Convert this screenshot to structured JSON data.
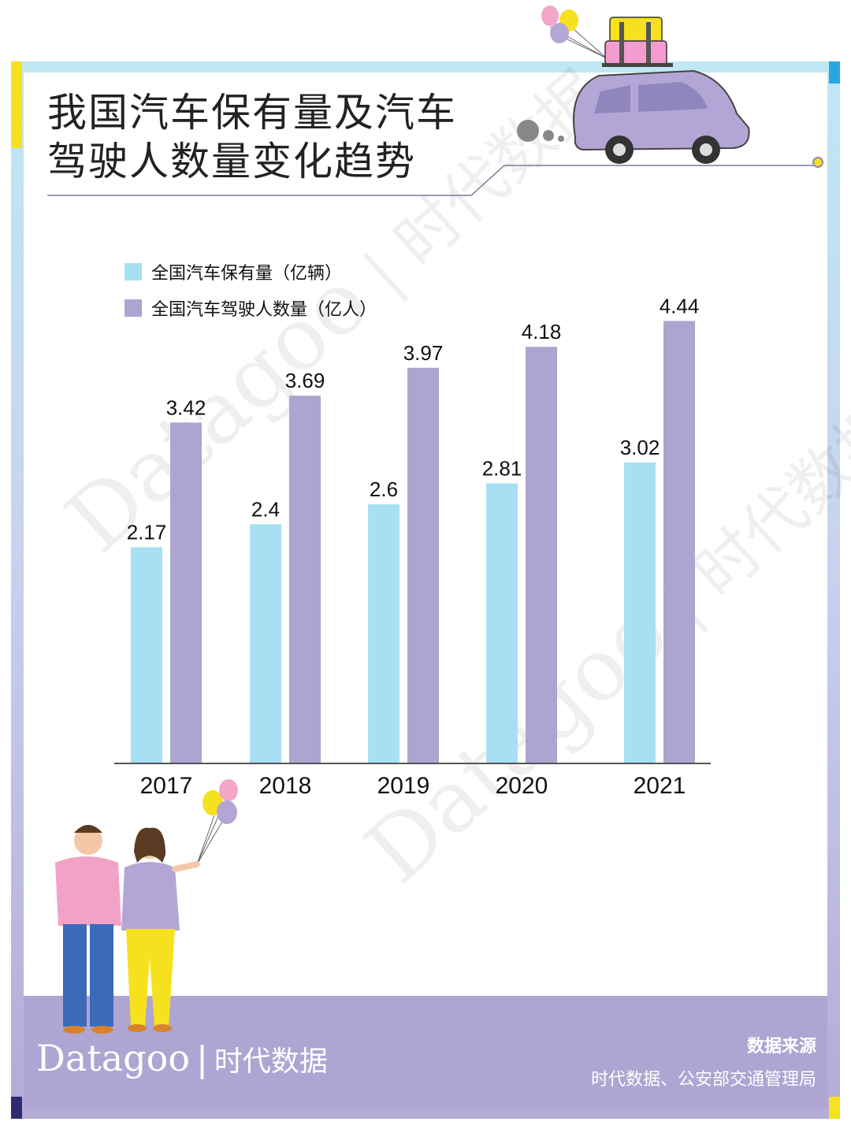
{
  "title": {
    "line1": "我国汽车保有量及汽车",
    "line2": "驾驶人数量变化趋势"
  },
  "colors": {
    "series_cars": "#a8e0f3",
    "series_drivers": "#ada4cf",
    "footer": "#aea5d2",
    "accent_yellow": "#f6e11e",
    "accent_blue": "#29a7e0",
    "accent_navy": "#2e2b6e"
  },
  "chart_data": {
    "type": "bar",
    "categories": [
      "2017",
      "2018",
      "2019",
      "2020",
      "2021"
    ],
    "series": [
      {
        "name": "全国汽车保有量（亿辆）",
        "values": [
          2.17,
          2.4,
          2.6,
          2.81,
          3.02
        ]
      },
      {
        "name": "全国汽车驾驶人数量（亿人）",
        "values": [
          3.42,
          3.69,
          3.97,
          4.18,
          4.44
        ]
      }
    ],
    "data_labels": true,
    "legend": "top-left",
    "grid": false,
    "ylim": [
      0,
      4.6
    ]
  },
  "watermark": {
    "brand": "Datagoo",
    "cn": "时代数据"
  },
  "footer": {
    "brand_en": "Datagoo",
    "brand_sep": "|",
    "brand_cn": "时代数据",
    "source_title": "数据来源",
    "source_text": "时代数据、公安部交通管理局"
  },
  "illustrations": {
    "top_right": "car-with-luggage-and-balloons",
    "bottom_left": "couple-with-balloons"
  }
}
